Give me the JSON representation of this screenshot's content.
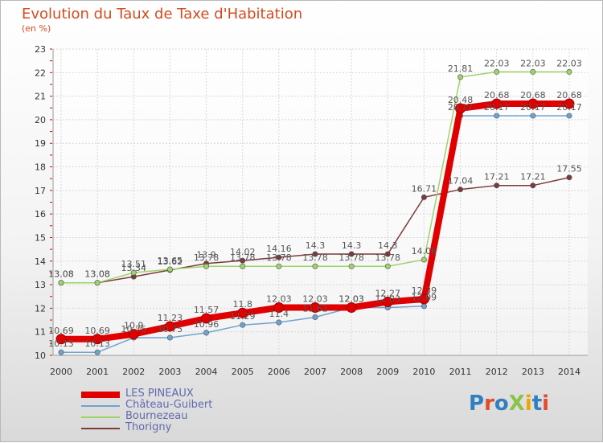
{
  "title": "Evolution du Taux de Taxe d'Habitation",
  "unit_label": "(en %)",
  "logo_text": "ProXiti",
  "logo_colors": [
    "#2f7fc1",
    "#e34b2a",
    "#2f7fc1",
    "#8bc34a",
    "#f0a400",
    "#2f7fc1",
    "#e34b2a"
  ],
  "chart_data": {
    "type": "line",
    "x": [
      2000,
      2001,
      2002,
      2003,
      2004,
      2005,
      2006,
      2007,
      2008,
      2009,
      2010,
      2011,
      2012,
      2013,
      2014
    ],
    "ylim": [
      10,
      23
    ],
    "yticks": [
      10,
      11,
      12,
      13,
      14,
      15,
      16,
      17,
      18,
      19,
      20,
      21,
      22,
      23
    ],
    "xlabel": "",
    "ylabel": "(en %)",
    "grid": true,
    "legend_position": "bottom-left",
    "series": [
      {
        "name": "LES PINEAUX",
        "color": "#e00000",
        "values": [
          10.69,
          10.69,
          10.9,
          11.23,
          11.57,
          11.8,
          12.03,
          12.03,
          12.03,
          12.27,
          12.39,
          20.48,
          20.68,
          20.68,
          20.68
        ],
        "labels": [
          "10.69",
          "10.69",
          "10.9",
          "11.23",
          "11.57",
          "11.8",
          "12.03",
          "12.03",
          "12.03",
          "12.27",
          "12.39",
          "20.48",
          "20.68",
          "20.68",
          "20.68"
        ]
      },
      {
        "name": "Château-Guibert",
        "color": "#6fa3cf",
        "values": [
          10.13,
          10.13,
          10.75,
          10.75,
          10.96,
          11.29,
          11.4,
          11.62,
          12.03,
          12.03,
          12.09,
          20.17,
          20.17,
          20.17,
          20.17
        ],
        "labels": [
          "10.13",
          "10.13",
          "10.75",
          "10.75",
          "10.96",
          "11.29",
          "11.4",
          "11.62",
          "12.03",
          "12.03",
          "12.09",
          "20.17",
          "20.17",
          "20.17",
          "20.17"
        ]
      },
      {
        "name": "Bournezeau",
        "color": "#9ed36a",
        "values": [
          13.08,
          13.08,
          13.51,
          13.65,
          13.78,
          13.78,
          13.78,
          13.78,
          13.78,
          13.78,
          14.06,
          21.81,
          22.03,
          22.03,
          22.03
        ],
        "labels": [
          "13.08",
          "13.08",
          "13.51",
          "13.65",
          "13.78",
          "13.78",
          "13.78",
          "13.78",
          "13.78",
          "13.78",
          "14.06",
          "21.81",
          "22.03",
          "22.03",
          "22.03"
        ]
      },
      {
        "name": "Thorigny",
        "color": "#7b3b3b",
        "values": [
          13.08,
          13.08,
          13.34,
          13.62,
          13.9,
          14.02,
          14.16,
          14.3,
          14.3,
          14.3,
          16.71,
          17.04,
          17.21,
          17.21,
          17.55
        ],
        "labels": [
          "13.08",
          "13.08",
          "13.34",
          "13.62",
          "13.9",
          "14.02",
          "14.16",
          "14.3",
          "14.3",
          "14.3",
          "16.71",
          "17.04",
          "17.21",
          "17.21",
          "17.55"
        ]
      }
    ]
  }
}
